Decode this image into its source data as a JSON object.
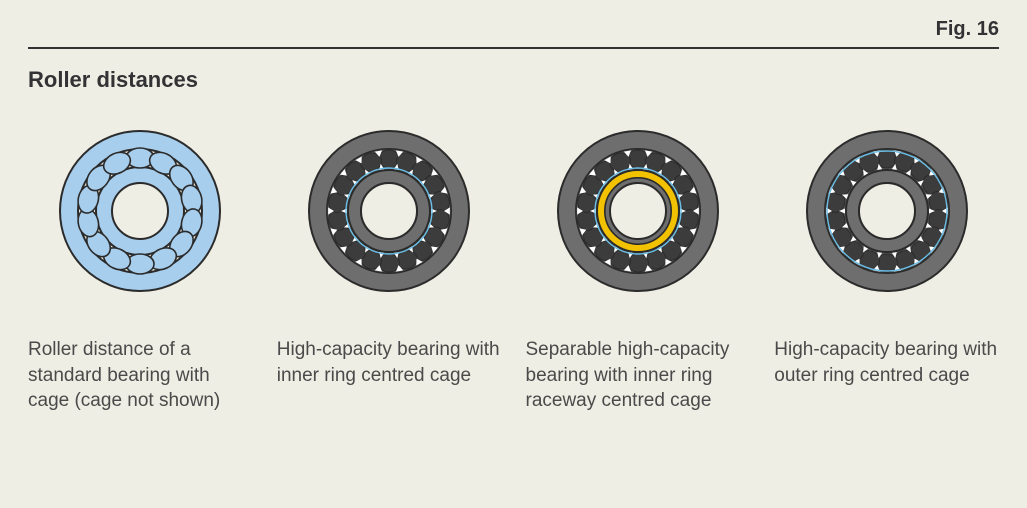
{
  "figure_label": "Fig. 16",
  "title": "Roller distances",
  "colors": {
    "background": "#efeee4",
    "rule": "#333335",
    "text": "#4a4a4a",
    "stroke_dark": "#2b2b2b",
    "light_blue_fill": "#a7ceed",
    "light_blue_stroke": "#2b2b2b",
    "bearing_body": "#6e6e6e",
    "bearing_body_dark": "#575757",
    "roller_dark": "#3c3c3c",
    "yellow_ring": "#f2c200",
    "guide_line": "#6bbee6",
    "white": "#ffffff"
  },
  "geometry": {
    "view": 180,
    "standard": {
      "outer_r": 80,
      "outer_ring_inner_r": 62,
      "inner_ring_outer_r": 44,
      "inner_ring_inner_r": 28,
      "roller_pitch_r": 53,
      "roller_count": 14,
      "roller_rx": 14,
      "roller_ry": 10
    },
    "highcap": {
      "outer_r": 80,
      "outer_ring_inner_r": 62,
      "cage_outer_r": 62,
      "cage_inner_r": 41,
      "bore_r": 28,
      "roller_pitch_r": 52,
      "roller_count": 18,
      "roller_rx": 10.5,
      "roller_ry": 9
    }
  },
  "items": [
    {
      "caption": "Roller distance of a standard bearing with cage (cage not shown)"
    },
    {
      "caption": "High-capacity bearing with inner ring centred cage"
    },
    {
      "caption": "Separable high-capacity bearing with inner ring raceway centred cage"
    },
    {
      "caption": "High-capacity bearing with outer ring centred cage"
    }
  ]
}
